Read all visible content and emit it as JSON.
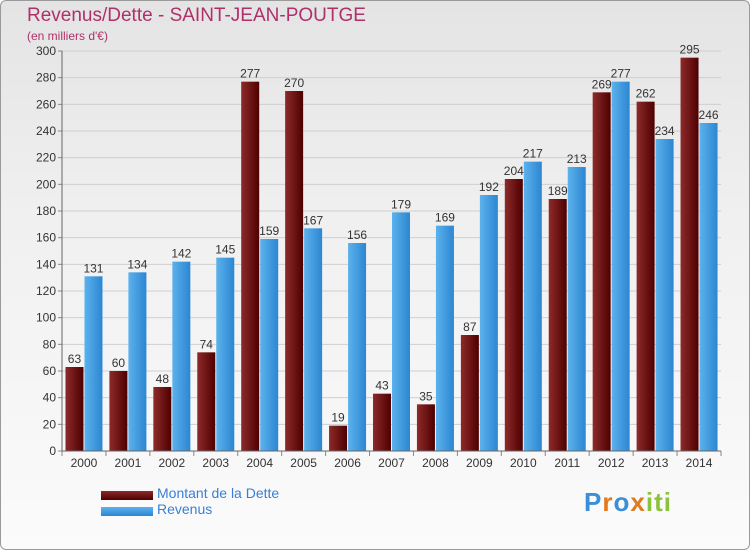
{
  "chart_data": {
    "type": "bar",
    "title": "Revenus/Dette - SAINT-JEAN-POUTGE",
    "subtitle": "(en milliers d'€)",
    "categories": [
      "2000",
      "2001",
      "2002",
      "2003",
      "2004",
      "2005",
      "2006",
      "2007",
      "2008",
      "2009",
      "2010",
      "2011",
      "2012",
      "2013",
      "2014"
    ],
    "series": [
      {
        "name": "Montant de la Dette",
        "color": "#7a1a1a",
        "values": [
          63,
          60,
          48,
          74,
          277,
          270,
          19,
          43,
          35,
          87,
          204,
          189,
          269,
          262,
          295
        ]
      },
      {
        "name": "Revenus",
        "color": "#3a9ae0",
        "values": [
          131,
          134,
          142,
          145,
          159,
          167,
          156,
          179,
          169,
          192,
          217,
          213,
          277,
          234,
          246
        ]
      }
    ],
    "ylim": [
      0,
      300
    ],
    "yticks": [
      0,
      20,
      40,
      60,
      80,
      100,
      120,
      140,
      160,
      180,
      200,
      220,
      240,
      260,
      280,
      300
    ],
    "grid": true,
    "legend_position": "bottom-left"
  },
  "logo": {
    "letters": [
      {
        "ch": "P",
        "color": "#3a8fd8"
      },
      {
        "ch": "r",
        "color": "#e07a20"
      },
      {
        "ch": "o",
        "color": "#3a8fd8"
      },
      {
        "ch": "x",
        "color": "#e07a20"
      },
      {
        "ch": "i",
        "color": "#8cc23a"
      },
      {
        "ch": "t",
        "color": "#8cc23a"
      },
      {
        "ch": "i",
        "color": "#8cc23a"
      }
    ]
  }
}
